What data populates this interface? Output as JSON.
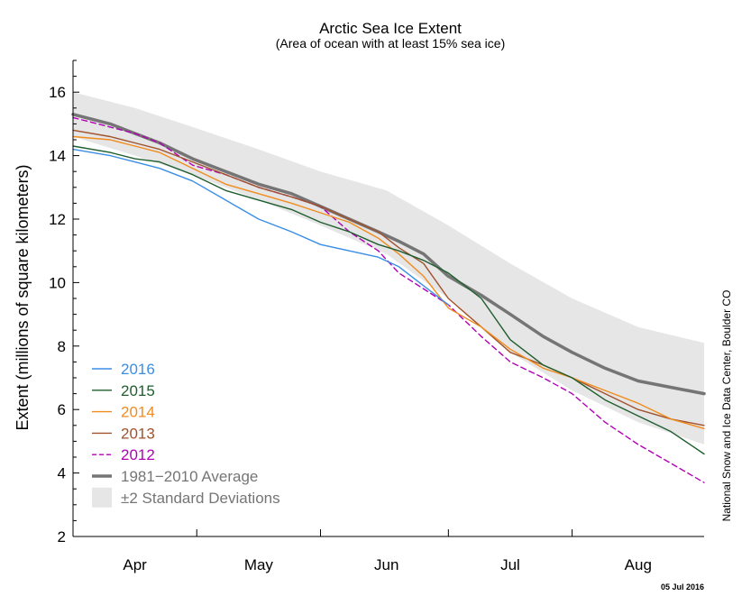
{
  "chart_data": {
    "type": "line",
    "title": "Arctic Sea Ice Extent",
    "subtitle": "(Area of ocean with at least 15% sea ice)",
    "ylabel": "Extent (millions of square kilometers)",
    "xlabel": "",
    "ylim": [
      2,
      17
    ],
    "yticks": [
      2,
      4,
      6,
      8,
      10,
      12,
      14,
      16
    ],
    "xrange": [
      1,
      154
    ],
    "month_boundaries": [
      31,
      61,
      92,
      122
    ],
    "months": [
      {
        "label": "Apr",
        "x": 16
      },
      {
        "label": "May",
        "x": 46
      },
      {
        "label": "Jun",
        "x": 77
      },
      {
        "label": "Jul",
        "x": 107
      },
      {
        "label": "Aug",
        "x": 138
      }
    ],
    "credit": "National Snow and Ice Data Center, Boulder CO",
    "date_stamp": "05 Jul 2016",
    "std_band": {
      "name": "±2 Standard Deviations",
      "color": "#e6e6e6",
      "x": [
        1,
        16,
        30,
        46,
        61,
        77,
        92,
        107,
        122,
        138,
        154
      ],
      "upper": [
        16.0,
        15.5,
        14.9,
        14.2,
        13.5,
        12.9,
        11.8,
        10.6,
        9.5,
        8.6,
        8.1
      ],
      "lower": [
        14.6,
        14.0,
        13.4,
        12.6,
        11.8,
        10.9,
        9.5,
        7.8,
        6.6,
        5.6,
        4.9
      ]
    },
    "series": [
      {
        "name": "2016",
        "color": "#3a8ee6",
        "dash": false,
        "width": 1.4,
        "x": [
          1,
          10,
          16,
          22,
          30,
          38,
          46,
          54,
          61,
          68,
          75,
          80,
          85,
          92
        ],
        "values": [
          14.2,
          14.0,
          13.8,
          13.6,
          13.2,
          12.6,
          12.0,
          11.6,
          11.2,
          11.0,
          10.8,
          10.5,
          10.0,
          9.3
        ]
      },
      {
        "name": "2015",
        "color": "#1f5e2e",
        "dash": false,
        "width": 1.4,
        "x": [
          1,
          10,
          16,
          22,
          30,
          38,
          46,
          54,
          61,
          68,
          75,
          80,
          86,
          92,
          100,
          107,
          115,
          122,
          130,
          138,
          146,
          154
        ],
        "values": [
          14.3,
          14.1,
          13.9,
          13.8,
          13.4,
          12.9,
          12.6,
          12.3,
          11.9,
          11.6,
          11.2,
          11.0,
          10.7,
          10.3,
          9.5,
          8.2,
          7.4,
          7.0,
          6.3,
          5.8,
          5.3,
          4.6
        ]
      },
      {
        "name": "2014",
        "color": "#f08c1e",
        "dash": false,
        "width": 1.4,
        "x": [
          1,
          10,
          16,
          22,
          30,
          38,
          46,
          54,
          61,
          68,
          75,
          80,
          86,
          92,
          100,
          107,
          115,
          122,
          130,
          138,
          146,
          154
        ],
        "values": [
          14.6,
          14.5,
          14.3,
          14.1,
          13.6,
          13.1,
          12.8,
          12.5,
          12.2,
          11.9,
          11.4,
          10.9,
          10.2,
          9.2,
          8.6,
          7.9,
          7.3,
          7.0,
          6.6,
          6.2,
          5.7,
          5.4
        ]
      },
      {
        "name": "2013",
        "color": "#a0522d",
        "dash": false,
        "width": 1.4,
        "x": [
          1,
          10,
          16,
          22,
          30,
          38,
          46,
          54,
          61,
          68,
          75,
          80,
          86,
          92,
          100,
          107,
          115,
          122,
          130,
          138,
          146,
          154
        ],
        "values": [
          14.8,
          14.6,
          14.4,
          14.2,
          13.8,
          13.4,
          13.0,
          12.7,
          12.4,
          12.0,
          11.6,
          11.1,
          10.6,
          9.5,
          8.6,
          7.8,
          7.4,
          7.0,
          6.5,
          6.0,
          5.7,
          5.5
        ]
      },
      {
        "name": "2012",
        "color": "#b000b5",
        "dash": true,
        "width": 1.4,
        "x": [
          1,
          10,
          16,
          22,
          30,
          38,
          46,
          54,
          61,
          68,
          75,
          80,
          86,
          92,
          100,
          107,
          115,
          122,
          130,
          138,
          146,
          154
        ],
        "values": [
          15.2,
          14.9,
          14.7,
          14.4,
          13.7,
          13.4,
          13.0,
          12.7,
          12.4,
          11.6,
          11.0,
          10.3,
          9.8,
          9.3,
          8.3,
          7.5,
          7.0,
          6.5,
          5.6,
          4.9,
          4.3,
          3.7
        ]
      },
      {
        "name": "1981−2010 Average",
        "color": "#757575",
        "dash": false,
        "width": 3.5,
        "x": [
          1,
          10,
          16,
          22,
          30,
          38,
          46,
          54,
          61,
          68,
          75,
          80,
          86,
          92,
          100,
          107,
          115,
          122,
          130,
          138,
          146,
          154
        ],
        "values": [
          15.3,
          15.0,
          14.7,
          14.4,
          13.9,
          13.5,
          13.1,
          12.8,
          12.4,
          12.0,
          11.6,
          11.3,
          10.9,
          10.2,
          9.6,
          9.0,
          8.3,
          7.8,
          7.3,
          6.9,
          6.7,
          6.5
        ]
      }
    ],
    "legend": {
      "position": "lower-left",
      "items": [
        {
          "label": "2016",
          "kind": "line",
          "color": "#3a8ee6",
          "dash": false,
          "width": 1.4
        },
        {
          "label": "2015",
          "kind": "line",
          "color": "#1f5e2e",
          "dash": false,
          "width": 1.4
        },
        {
          "label": "2014",
          "kind": "line",
          "color": "#f08c1e",
          "dash": false,
          "width": 1.4
        },
        {
          "label": "2013",
          "kind": "line",
          "color": "#a0522d",
          "dash": false,
          "width": 1.4
        },
        {
          "label": "2012",
          "kind": "line",
          "color": "#b000b5",
          "dash": true,
          "width": 1.4
        },
        {
          "label": "1981−2010 Average",
          "kind": "line",
          "color": "#757575",
          "dash": false,
          "width": 3.5
        },
        {
          "label": "±2 Standard Deviations",
          "kind": "box",
          "color": "#e6e6e6",
          "dash": false,
          "width": 0
        }
      ]
    }
  }
}
